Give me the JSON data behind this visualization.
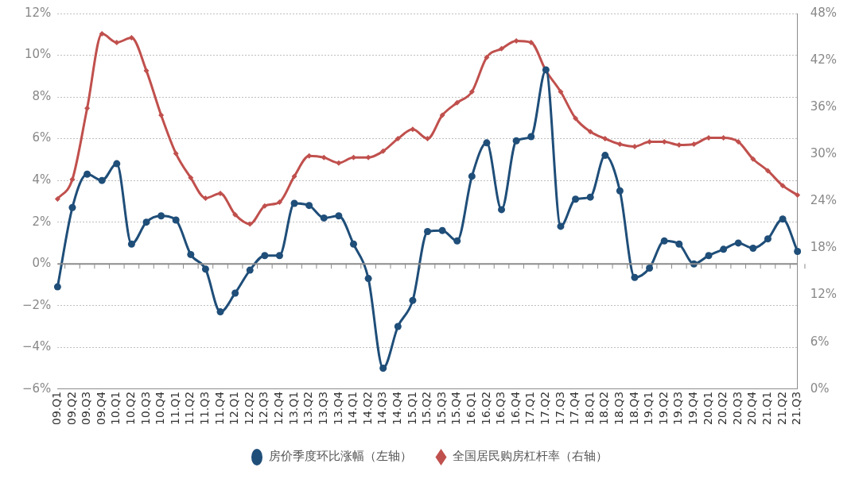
{
  "chart_data": {
    "type": "line",
    "categories": [
      "09.Q1",
      "09.Q2",
      "09.Q3",
      "09.Q4",
      "10.Q1",
      "10.Q2",
      "10.Q3",
      "10.Q4",
      "11.Q1",
      "11.Q2",
      "11.Q3",
      "11.Q4",
      "12.Q1",
      "12.Q2",
      "12.Q3",
      "12.Q4",
      "13.Q1",
      "13.Q2",
      "13.Q3",
      "13.Q4",
      "14.Q1",
      "14.Q2",
      "14.Q3",
      "14.Q4",
      "15.Q1",
      "15.Q2",
      "15.Q3",
      "15.Q4",
      "16.Q1",
      "16.Q2",
      "16.Q3",
      "16.Q4",
      "17.Q1",
      "17.Q2",
      "17.Q3",
      "17.Q4",
      "18.Q1",
      "18.Q2",
      "18.Q3",
      "18.Q4",
      "19.Q1",
      "19.Q2",
      "19.Q3",
      "19.Q4",
      "20.Q1",
      "20.Q2",
      "20.Q3",
      "20.Q4",
      "21.Q1",
      "21.Q2",
      "21.Q3"
    ],
    "series": [
      {
        "name": "房价季度环比涨幅（左轴）",
        "color": "#1f4e79",
        "marker": "circle",
        "values": [
          -1.1,
          2.7,
          4.3,
          4.0,
          4.8,
          0.95,
          2.0,
          2.3,
          2.1,
          0.45,
          -0.25,
          -2.3,
          -1.4,
          -0.3,
          0.4,
          0.4,
          2.9,
          2.8,
          2.2,
          2.3,
          0.95,
          -0.7,
          -5.0,
          -3.0,
          -1.75,
          1.55,
          1.6,
          1.1,
          4.2,
          5.8,
          2.6,
          5.9,
          6.1,
          9.3,
          1.8,
          3.1,
          3.2,
          5.2,
          3.5,
          -0.65,
          -0.2,
          1.1,
          0.95,
          0.0,
          0.4,
          0.7,
          1.0,
          0.75,
          1.2,
          2.15,
          0.6
        ]
      },
      {
        "name": "全国居民购房杠杆率（右轴）",
        "color": "#c0504d",
        "marker": "diamond",
        "axis": "y2",
        "values": [
          24.3,
          26.8,
          35.9,
          45.4,
          44.3,
          44.9,
          40.7,
          35.0,
          30.1,
          27.0,
          24.4,
          25.0,
          22.3,
          21.1,
          23.4,
          23.9,
          27.2,
          29.8,
          29.6,
          28.9,
          29.6,
          29.6,
          30.4,
          32.0,
          33.2,
          32.0,
          35.0,
          36.6,
          38.0,
          42.4,
          43.5,
          44.5,
          44.3,
          40.7,
          38.0,
          34.6,
          32.9,
          32.0,
          31.3,
          31.0,
          31.6,
          31.6,
          31.2,
          31.3,
          32.1,
          32.1,
          31.6,
          29.4,
          27.9,
          26.0,
          24.8
        ]
      }
    ],
    "ylim": [
      -6,
      12
    ],
    "yticks": [
      {
        "value": -6,
        "label": "−6%"
      },
      {
        "value": -4,
        "label": "−4%"
      },
      {
        "value": -2,
        "label": "−2%"
      },
      {
        "value": 0,
        "label": "0%"
      },
      {
        "value": 2,
        "label": "2%"
      },
      {
        "value": 4,
        "label": "4%"
      },
      {
        "value": 6,
        "label": "6%"
      },
      {
        "value": 8,
        "label": "8%"
      },
      {
        "value": 10,
        "label": "10%"
      },
      {
        "value": 12,
        "label": "12%"
      }
    ],
    "y2lim": [
      0,
      48
    ],
    "y2ticks": [
      {
        "value": 0,
        "label": "0%"
      },
      {
        "value": 6,
        "label": "6%"
      },
      {
        "value": 12,
        "label": "12%"
      },
      {
        "value": 18,
        "label": "18%"
      },
      {
        "value": 24,
        "label": "24%"
      },
      {
        "value": 30,
        "label": "30%"
      },
      {
        "value": 36,
        "label": "36%"
      },
      {
        "value": 42,
        "label": "42%"
      },
      {
        "value": 48,
        "label": "48%"
      }
    ],
    "grid": "y",
    "legend": "bottom",
    "line_style": "solid"
  }
}
